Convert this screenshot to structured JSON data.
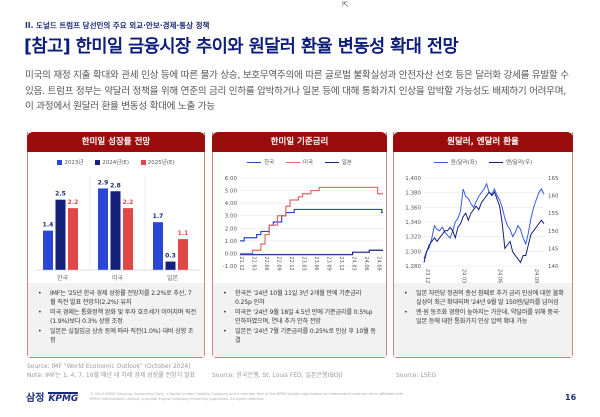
{
  "section": "II. 도널드 트럼프 당선인의 주요 외교·안보·경제·통상 정책",
  "title": "[참고] 한미일 금융시장 추이와 원달러 환율 변동성 확대 전망",
  "intro": "미국의 재정 지출 확대와 관세 인상 등에 따른 물가 상승, 보호무역주의에 따른 글로벌 불확실성과 안전자산 선호 등은 달러화 강세를 유발할 수 있음. 트럼프 정부는 약달러 정책을 위해 연준의 금리 인하를 압박하거나 일본 등에 대해 통화가치 인상을 압박할 가능성도 배제하기 어려우며, 이 과정에서 원달러 환율 변동성 확대에 노출 가능",
  "colors": {
    "brand": "#9b0c0c",
    "navy": "#0d1d7a",
    "blue": "#2a46d6",
    "darkblue": "#14207a",
    "red": "#e04848"
  },
  "panels": [
    {
      "header": "한미일 성장률 전망",
      "bullets": [
        "IMF는 '25년 한국 경제 성장률 전망치를 2.2%로 추산, 7월 직전 발표 전망치(2.2%) 유지",
        "미국 경제는 통화정책 완화 및 투자 호조세가 이어지며 직전(1.9%)보다 0.3% 상향 조정",
        "일본은 실질임금 상승 등에 따라 직전(1.0%) 대비 상향 조정"
      ],
      "source": "Source: IMF \"World Economic Outlook\" (October 2024)",
      "note": "Note: IMF는 1, 4, 7, 10월 매년 네 차례 경제 성장률 전망치 발표"
    },
    {
      "header": "한미일 기준금리",
      "bullets": [
        "한국은 '24년 10월 11일 3년 2개월 만에 기준금리 0.25p 인하",
        "미국은 '24년 9월 18일 4.5년 만에 기준금리를 0.5%p 인하하였으며, 연내 추가 인하 전망",
        "일본은 '24년 7월 기준금리를 0.25%로 인상 후 10월 동결"
      ],
      "source": "Source: 한국은행, St. Louis FED, 일본은행(BOJ)"
    },
    {
      "header": "원달러, 엔달러 환율",
      "bullets": [
        "일본 자민당 정권의 총선 참패로 추가 금리 인상에 대한 불확실성이 최근 확대되며 '24년 9월 말 150엔/달러를 넘어섬",
        "엔·원 동조화 경향이 높아지는 가운데, 약달러를 위해 중국·일본 등에 대한 통화가치 인상 압력 확대 가능"
      ],
      "source": "Source: LSEG"
    }
  ],
  "chart_data": [
    {
      "type": "bar",
      "title": "한미일 성장률 전망",
      "categories": [
        "한국",
        "미국",
        "일본"
      ],
      "series": [
        {
          "name": "2023년",
          "values": [
            1.4,
            2.9,
            1.7
          ],
          "color": "#2a46d6"
        },
        {
          "name": "2024년(E)",
          "values": [
            2.5,
            2.8,
            0.3
          ],
          "color": "#14207a"
        },
        {
          "name": "2025년(E)",
          "values": [
            2.2,
            2.2,
            1.1
          ],
          "color": "#e04848"
        }
      ],
      "ylim": [
        0,
        3.2
      ],
      "grid": false,
      "legend": "top"
    },
    {
      "type": "line",
      "title": "한미일 기준금리",
      "ylim": [
        -1,
        6
      ],
      "yticks": [
        "-1.00",
        "0.00",
        "1.00",
        "2.00",
        "3.00",
        "4.00",
        "5.00",
        "6.00"
      ],
      "xticks": [
        "21.12",
        "22.03",
        "22.06",
        "22.09",
        "22.12",
        "23.03",
        "23.06",
        "23.09",
        "23.12",
        "24.03",
        "24.06",
        "24.09"
      ],
      "grid": true,
      "legend": "top",
      "series": [
        {
          "name": "한국",
          "color": "#2a46d6",
          "steps": [
            [
              "21.12",
              1.0
            ],
            [
              "22.01",
              1.25
            ],
            [
              "22.04",
              1.5
            ],
            [
              "22.05",
              1.75
            ],
            [
              "22.07",
              2.25
            ],
            [
              "22.08",
              2.5
            ],
            [
              "22.10",
              3.0
            ],
            [
              "22.11",
              3.25
            ],
            [
              "23.01",
              3.5
            ],
            [
              "24.10",
              3.25
            ]
          ]
        },
        {
          "name": "미국",
          "color": "#e06a6a",
          "steps": [
            [
              "21.12",
              0.0
            ],
            [
              "22.03",
              0.25
            ],
            [
              "22.05",
              0.75
            ],
            [
              "22.06",
              1.5
            ],
            [
              "22.07",
              2.25
            ],
            [
              "22.09",
              3.0
            ],
            [
              "22.11",
              3.75
            ],
            [
              "22.12",
              4.25
            ],
            [
              "23.02",
              4.5
            ],
            [
              "23.03",
              4.75
            ],
            [
              "23.05",
              5.0
            ],
            [
              "23.07",
              5.25
            ],
            [
              "24.09",
              4.75
            ]
          ]
        },
        {
          "name": "일본",
          "color": "#14207a",
          "steps": [
            [
              "21.12",
              -0.1
            ],
            [
              "24.03",
              0.1
            ],
            [
              "24.07",
              0.25
            ]
          ]
        }
      ]
    },
    {
      "type": "line",
      "title": "원달러, 엔달러 환율",
      "xticks": [
        "23.12",
        "24.03",
        "24.06",
        "24.09"
      ],
      "grid": true,
      "legend": "top",
      "y_left": {
        "ylim": [
          1280,
          1400
        ],
        "ticks": [
          "1,280",
          "1,300",
          "1,320",
          "1,340",
          "1,360",
          "1,380",
          "1,400"
        ]
      },
      "y_right": {
        "ylim": [
          140,
          165
        ],
        "ticks": [
          "140",
          "145",
          "150",
          "155",
          "160",
          "165"
        ]
      },
      "series": [
        {
          "name": "원/달러(좌)",
          "axis": "left",
          "color": "#3a5ae0",
          "values": [
            1290,
            1300,
            1305,
            1318,
            1335,
            1330,
            1328,
            1333,
            1326,
            1322,
            1318,
            1328,
            1340,
            1345,
            1355,
            1385,
            1375,
            1372,
            1365,
            1360,
            1368,
            1375,
            1380,
            1385,
            1392,
            1380,
            1378,
            1385,
            1376,
            1370,
            1360,
            1345,
            1335,
            1330,
            1320,
            1326,
            1335,
            1330,
            1318,
            1310,
            1325,
            1345,
            1360,
            1370,
            1380,
            1385,
            1378
          ]
        },
        {
          "name": "엔/달러(우)",
          "axis": "right",
          "color": "#14207a",
          "values": [
            141,
            144,
            146,
            147,
            148,
            147,
            148,
            149,
            150,
            150,
            151,
            150,
            148,
            151,
            152,
            154,
            155,
            153,
            155,
            156,
            157,
            156,
            158,
            159,
            160,
            161,
            160,
            161,
            159,
            157,
            152,
            145,
            146,
            147,
            144,
            143,
            142,
            141,
            143,
            143,
            146,
            149,
            150,
            151,
            152,
            153,
            152
          ]
        }
      ]
    }
  ],
  "footer": {
    "logo": "삼정 KPMG",
    "copyright": "© 2024 KPMG Samjong Accounting Corp., a Korea Limited Liability Company and a member firm of the KPMG global organization of independent member firms affiliated with KPMG International Limited, a private English company limited by guarantee. All rights reserved.",
    "page": "16"
  }
}
